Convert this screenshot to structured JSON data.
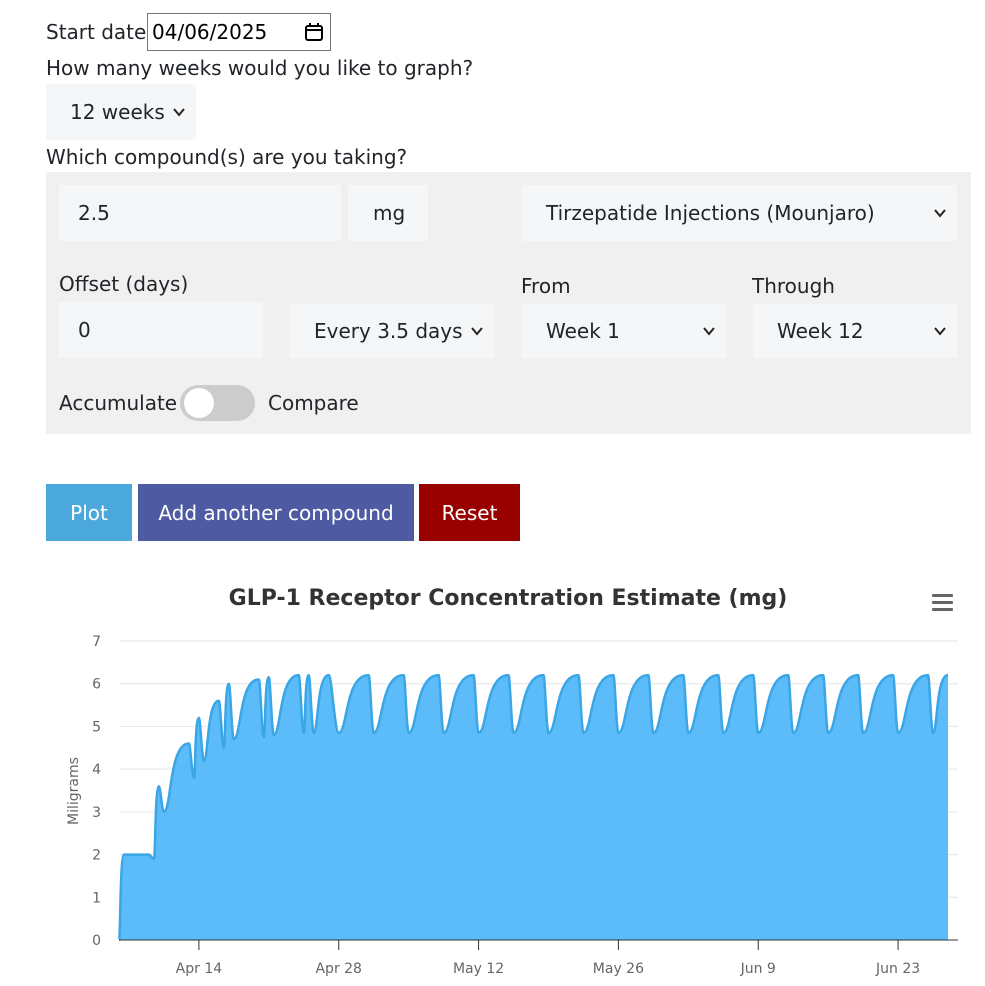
{
  "form": {
    "start_date_label": "Start date:",
    "start_date_value": "04/06/2025",
    "weeks_question": "How many weeks would you like to graph?",
    "weeks_value": "12 weeks",
    "compound_question": "Which compound(s) are you taking?"
  },
  "compound": {
    "dose_value": "2.5",
    "unit_value": "mg",
    "compound_value": "Tirzepatide Injections (Mounjaro)",
    "offset_label": "Offset (days)",
    "offset_value": "0",
    "frequency_value": "Every 3.5 days",
    "from_label": "From",
    "from_value": "Week 1",
    "through_label": "Through",
    "through_value": "Week 12",
    "accumulate_label": "Accumulate",
    "compare_label": "Compare",
    "accumulate_on": false
  },
  "buttons": {
    "plot": "Plot",
    "add": "Add another compound",
    "reset": "Reset"
  },
  "colors": {
    "plot_button": "#4aa8dc",
    "add_button": "#4e5aa2",
    "reset_button": "#990000",
    "series_fill": "#5bbcf9",
    "series_line": "#3aa6e6"
  },
  "chart_data": {
    "type": "area",
    "title": "GLP-1 Receptor Concentration Estimate (mg)",
    "ylabel": "Miligrams",
    "xlabel": "",
    "ylim": [
      0,
      7
    ],
    "yticks": [
      "0",
      "1",
      "2",
      "3",
      "4",
      "5",
      "6",
      "7"
    ],
    "xlim": [
      "2025-04-06",
      "2025-06-29"
    ],
    "xticks": [
      {
        "date": "2025-04-14",
        "label": "Apr 14"
      },
      {
        "date": "2025-04-28",
        "label": "Apr 28"
      },
      {
        "date": "2025-05-12",
        "label": "May 12"
      },
      {
        "date": "2025-05-26",
        "label": "May 26"
      },
      {
        "date": "2025-06-09",
        "label": "Jun 9"
      },
      {
        "date": "2025-06-23",
        "label": "Jun 23"
      }
    ],
    "grid": true,
    "menu_icon": "hamburger-icon",
    "series": [
      {
        "x": [
          "2025-04-06",
          "2025-04-06T12:00",
          "2025-04-09",
          "2025-04-09T12:00",
          "2025-04-10",
          "2025-04-10T12:00",
          "2025-04-13",
          "2025-04-13T12:00",
          "2025-04-14",
          "2025-04-14T12:00",
          "2025-04-16",
          "2025-04-16T12:00",
          "2025-04-17",
          "2025-04-17T12:00",
          "2025-04-20",
          "2025-04-20T12:00",
          "2025-04-21",
          "2025-04-21T12:00",
          "2025-04-24",
          "2025-04-24T12:00",
          "2025-04-25",
          "2025-04-25T12:00",
          "2025-04-27",
          "2025-04-28",
          "2025-05-01",
          "2025-05-01T12:00",
          "2025-05-04T12:00",
          "2025-05-05",
          "2025-05-08",
          "2025-05-08T12:00",
          "2025-05-11T12:00",
          "2025-05-12",
          "2025-05-15",
          "2025-05-15T12:00",
          "2025-05-18T12:00",
          "2025-05-19",
          "2025-05-22",
          "2025-05-22T12:00",
          "2025-05-25T12:00",
          "2025-05-26",
          "2025-05-29",
          "2025-05-29T12:00",
          "2025-06-01T12:00",
          "2025-06-02",
          "2025-06-05",
          "2025-06-05T12:00",
          "2025-06-08T12:00",
          "2025-06-09",
          "2025-06-12",
          "2025-06-12T12:00",
          "2025-06-15T12:00",
          "2025-06-16",
          "2025-06-19",
          "2025-06-19T12:00",
          "2025-06-22T12:00",
          "2025-06-23",
          "2025-06-26",
          "2025-06-26T12:00",
          "2025-06-28"
        ],
        "y": [
          0,
          2.0,
          2.0,
          1.9,
          3.6,
          3.0,
          4.6,
          3.8,
          5.2,
          4.2,
          5.6,
          4.5,
          6.0,
          4.7,
          6.1,
          4.75,
          6.15,
          4.8,
          6.2,
          4.85,
          6.2,
          4.85,
          6.2,
          4.85,
          6.2,
          4.85,
          6.2,
          4.85,
          6.2,
          4.85,
          6.2,
          4.85,
          6.2,
          4.85,
          6.2,
          4.85,
          6.2,
          4.85,
          6.2,
          4.85,
          6.2,
          4.85,
          6.2,
          4.85,
          6.2,
          4.85,
          6.2,
          4.85,
          6.2,
          4.85,
          6.2,
          4.85,
          6.2,
          4.85,
          6.2,
          4.85,
          6.2,
          4.85,
          6.2
        ]
      }
    ]
  }
}
